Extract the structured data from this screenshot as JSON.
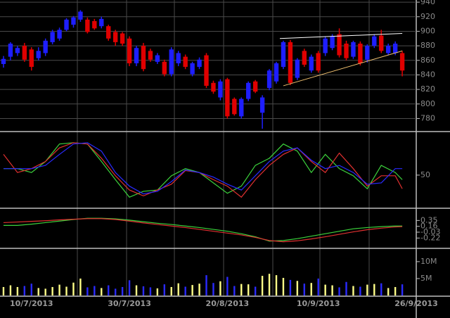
{
  "chart_data": [
    {
      "type": "candlestick",
      "xlim": [
        -0.5,
        59
      ],
      "ylim": [
        764,
        943
      ],
      "yticks": [
        940,
        920,
        900,
        880,
        860,
        840,
        820,
        800,
        780
      ],
      "grid": true,
      "up_color": "#1e1eff",
      "down_color": "#e00000",
      "open": [
        855,
        865,
        870,
        880,
        875,
        863,
        870,
        885,
        890,
        902,
        909,
        916,
        916,
        914,
        907,
        907,
        899,
        897,
        890,
        856,
        880,
        873,
        858,
        858,
        841,
        856,
        865,
        841,
        851,
        867,
        829,
        809,
        834,
        807,
        783,
        807,
        831,
        788,
        822,
        831,
        851,
        885,
        836,
        873,
        846,
        870,
        870,
        877,
        896,
        883,
        865,
        883,
        861,
        880,
        894,
        870,
        870,
        870
      ],
      "high": [
        866,
        885,
        880,
        884,
        878,
        878,
        890,
        902,
        905,
        918,
        921,
        929,
        919,
        917,
        920,
        909,
        902,
        899,
        893,
        880,
        884,
        876,
        870,
        861,
        878,
        873,
        868,
        858,
        864,
        870,
        832,
        834,
        836,
        809,
        809,
        831,
        833,
        812,
        848,
        858,
        887,
        888,
        863,
        876,
        868,
        873,
        893,
        896,
        904,
        887,
        887,
        886,
        882,
        896,
        902,
        883,
        886,
        873
      ],
      "low": [
        850,
        860,
        866,
        858,
        846,
        860,
        866,
        882,
        887,
        900,
        905,
        913,
        897,
        902,
        904,
        887,
        880,
        880,
        852,
        852,
        845,
        858,
        855,
        838,
        838,
        852,
        848,
        838,
        848,
        822,
        814,
        805,
        780,
        784,
        780,
        804,
        815,
        766,
        819,
        828,
        848,
        826,
        833,
        851,
        843,
        843,
        866,
        874,
        864,
        860,
        862,
        853,
        857,
        877,
        870,
        867,
        867,
        838
      ],
      "close": [
        862,
        883,
        877,
        861,
        851,
        873,
        887,
        899,
        902,
        916,
        919,
        927,
        899,
        904,
        917,
        890,
        885,
        883,
        856,
        877,
        848,
        861,
        867,
        841,
        875,
        870,
        851,
        856,
        861,
        825,
        817,
        831,
        783,
        786,
        807,
        829,
        817,
        809,
        846,
        856,
        885,
        829,
        861,
        854,
        865,
        846,
        890,
        893,
        867,
        863,
        885,
        856,
        880,
        893,
        873,
        880,
        883,
        846
      ],
      "trendlines": [
        {
          "color": "#ffffff",
          "points": [
            [
              39.5,
              890
            ],
            [
              57,
              897
            ]
          ]
        },
        {
          "color": "#f0c070",
          "points": [
            [
              40,
              825
            ],
            [
              57,
              873
            ]
          ]
        }
      ]
    },
    {
      "type": "line",
      "xlim": [
        -0.5,
        59
      ],
      "ylim": [
        0,
        115
      ],
      "yticks": [
        50
      ],
      "x": [
        0,
        2,
        4,
        6,
        8,
        10,
        12,
        14,
        16,
        18,
        20,
        22,
        24,
        26,
        28,
        30,
        32,
        34,
        36,
        38,
        40,
        42,
        44,
        46,
        48,
        50,
        52,
        54,
        56,
        57
      ],
      "series": [
        {
          "color": "#3cd23c",
          "values": [
            60,
            60,
            54,
            71,
            98,
            100,
            98,
            71,
            43,
            16,
            25,
            27,
            49,
            60,
            54,
            38,
            22,
            33,
            65,
            76,
            98,
            87,
            54,
            82,
            60,
            49,
            29,
            65,
            54,
            43
          ]
        },
        {
          "color": "#e03030",
          "values": [
            82,
            54,
            60,
            71,
            92,
            100,
            98,
            76,
            49,
            27,
            18,
            27,
            36,
            57,
            54,
            43,
            33,
            16,
            43,
            65,
            82,
            92,
            71,
            54,
            84,
            60,
            33,
            49,
            49,
            29
          ]
        },
        {
          "color": "#2a2aff",
          "values": [
            60,
            60,
            60,
            65,
            82,
            98,
            100,
            87,
            54,
            33,
            21,
            25,
            40,
            58,
            54,
            47,
            36,
            27,
            49,
            71,
            87,
            92,
            73,
            60,
            65,
            54,
            36,
            38,
            60,
            60
          ]
        }
      ]
    },
    {
      "type": "line",
      "xlim": [
        -0.5,
        59
      ],
      "ylim": [
        -0.6,
        0.7
      ],
      "yticks": [
        0.35,
        0.16,
        -0.03,
        -0.22
      ],
      "x": [
        0,
        2,
        4,
        6,
        8,
        10,
        12,
        14,
        16,
        18,
        20,
        22,
        24,
        26,
        28,
        30,
        32,
        34,
        36,
        38,
        40,
        42,
        44,
        46,
        48,
        50,
        52,
        54,
        56,
        57
      ],
      "series": [
        {
          "color": "#3cd23c",
          "values": [
            0.19,
            0.19,
            0.23,
            0.28,
            0.33,
            0.38,
            0.42,
            0.42,
            0.4,
            0.36,
            0.31,
            0.26,
            0.22,
            0.17,
            0.12,
            0.06,
            0.0,
            -0.08,
            -0.18,
            -0.32,
            -0.3,
            -0.24,
            -0.16,
            -0.08,
            0.0,
            0.08,
            0.12,
            0.15,
            0.17,
            0.17
          ]
        },
        {
          "color": "#e03030",
          "values": [
            0.28,
            0.3,
            0.32,
            0.34,
            0.37,
            0.39,
            0.41,
            0.41,
            0.38,
            0.33,
            0.27,
            0.22,
            0.17,
            0.12,
            0.06,
            0.0,
            -0.06,
            -0.12,
            -0.2,
            -0.3,
            -0.34,
            -0.31,
            -0.25,
            -0.18,
            -0.1,
            -0.02,
            0.05,
            0.1,
            0.14,
            0.15
          ]
        }
      ]
    },
    {
      "type": "bar",
      "xlim": [
        -0.5,
        59
      ],
      "ylim": [
        0,
        13.3
      ],
      "yticks": [
        {
          "value": 10,
          "label": "10M"
        },
        {
          "value": 5,
          "label": "5M"
        }
      ],
      "up_color": "#ffff88",
      "down_color": "#2a2aff",
      "values": [
        2.5,
        3,
        2.5,
        2.8,
        3.5,
        2.2,
        2,
        2.5,
        3.2,
        2.6,
        3.8,
        5,
        2.4,
        2.8,
        2.2,
        3,
        2,
        2.5,
        4.5,
        3,
        2.7,
        2.4,
        2.1,
        3.3,
        2.5,
        3.6,
        2.6,
        3.1,
        3.5,
        6,
        3.7,
        4.2,
        5.5,
        2.8,
        3.4,
        3.3,
        2.6,
        5.8,
        6.4,
        6,
        5.2,
        4.6,
        4.3,
        3.5,
        3.7,
        5,
        3.2,
        3,
        2.4,
        4,
        2.8,
        2.6,
        3.2,
        3.4,
        3.6,
        2.2,
        2.5,
        3.3
      ],
      "xticks": [
        {
          "value": 4,
          "label": "10/7/2013"
        },
        {
          "value": 18,
          "label": "30/7/2013"
        },
        {
          "value": 32,
          "label": "20/8/2013"
        },
        {
          "value": 45,
          "label": "10/9/2013"
        },
        {
          "value": 59,
          "label": "26/9/2013"
        }
      ]
    }
  ]
}
